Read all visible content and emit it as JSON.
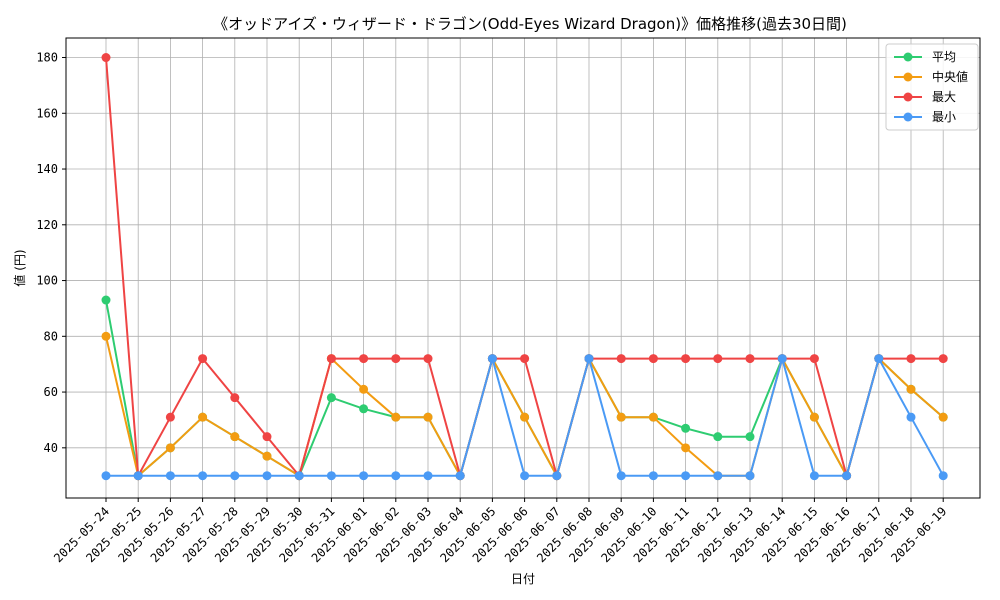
{
  "chart_data": {
    "type": "line",
    "title": "《オッドアイズ・ウィザード・ドラゴン(Odd-Eyes Wizard Dragon)》価格推移(過去30日間)",
    "xlabel": "日付",
    "ylabel": "値 (円)",
    "ylim": [
      22,
      187
    ],
    "yticks": [
      40,
      60,
      80,
      100,
      120,
      140,
      160,
      180
    ],
    "grid": true,
    "legend_position": "top-right",
    "categories": [
      "2025-05-24",
      "2025-05-25",
      "2025-05-26",
      "2025-05-27",
      "2025-05-28",
      "2025-05-29",
      "2025-05-30",
      "2025-05-31",
      "2025-06-01",
      "2025-06-02",
      "2025-06-03",
      "2025-06-04",
      "2025-06-05",
      "2025-06-06",
      "2025-06-07",
      "2025-06-08",
      "2025-06-09",
      "2025-06-10",
      "2025-06-11",
      "2025-06-12",
      "2025-06-13",
      "2025-06-14",
      "2025-06-15",
      "2025-06-16",
      "2025-06-17",
      "2025-06-18",
      "2025-06-19"
    ],
    "series": [
      {
        "name": "平均",
        "color": "#2ecc71",
        "values": [
          93,
          30,
          40,
          51,
          44,
          37,
          30,
          58,
          54,
          51,
          51,
          30,
          72,
          51,
          30,
          72,
          51,
          51,
          47,
          44,
          44,
          72,
          51,
          30,
          72,
          61,
          51
        ]
      },
      {
        "name": "中央値",
        "color": "#f39c12",
        "values": [
          80,
          30,
          40,
          51,
          44,
          37,
          30,
          72,
          61,
          51,
          51,
          30,
          72,
          51,
          30,
          72,
          51,
          51,
          40,
          30,
          30,
          72,
          51,
          30,
          72,
          61,
          51
        ]
      },
      {
        "name": "最大",
        "color": "#ef4444",
        "values": [
          180,
          30,
          51,
          72,
          58,
          44,
          30,
          72,
          72,
          72,
          72,
          30,
          72,
          72,
          30,
          72,
          72,
          72,
          72,
          72,
          72,
          72,
          72,
          30,
          72,
          72,
          72
        ]
      },
      {
        "name": "最小",
        "color": "#4a9af5",
        "values": [
          30,
          30,
          30,
          30,
          30,
          30,
          30,
          30,
          30,
          30,
          30,
          30,
          72,
          30,
          30,
          72,
          30,
          30,
          30,
          30,
          30,
          72,
          30,
          30,
          72,
          51,
          30
        ]
      }
    ]
  }
}
